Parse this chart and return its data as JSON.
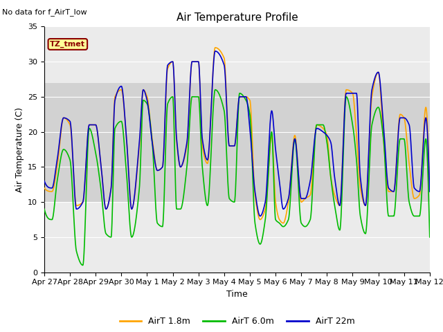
{
  "title": "Air Temperature Profile",
  "subtitle": "No data for f_AirT_low",
  "xlabel": "Time",
  "ylabel": "Air Temperature (C)",
  "ylim": [
    0,
    35
  ],
  "x_tick_labels": [
    "Apr 27",
    "Apr 28",
    "Apr 29",
    "Apr 30",
    "May 1",
    "May 2",
    "May 3",
    "May 4",
    "May 5",
    "May 6",
    "May 7",
    "May 8",
    "May 9",
    "May 10",
    "May 11",
    "May 12"
  ],
  "x_tick_pos": [
    0,
    1,
    2,
    3,
    4,
    5,
    6,
    7,
    8,
    9,
    10,
    11,
    12,
    13,
    14,
    15
  ],
  "legend_labels": [
    "AirT 1.8m",
    "AirT 6.0m",
    "AirT 22m"
  ],
  "legend_colors": [
    "#FFA500",
    "#00BB00",
    "#0000CC"
  ],
  "line_width": 1.2,
  "shaded_band": [
    10,
    27
  ],
  "tz_label": "TZ_tmet",
  "tz_box_color": "#FFFF99",
  "tz_text_color": "#8B0000",
  "background_color": "#ffffff",
  "plot_bg_color": "#ebebeb",
  "grid_color": "#ffffff",
  "yticks": [
    0,
    5,
    10,
    15,
    20,
    25,
    30,
    35
  ]
}
